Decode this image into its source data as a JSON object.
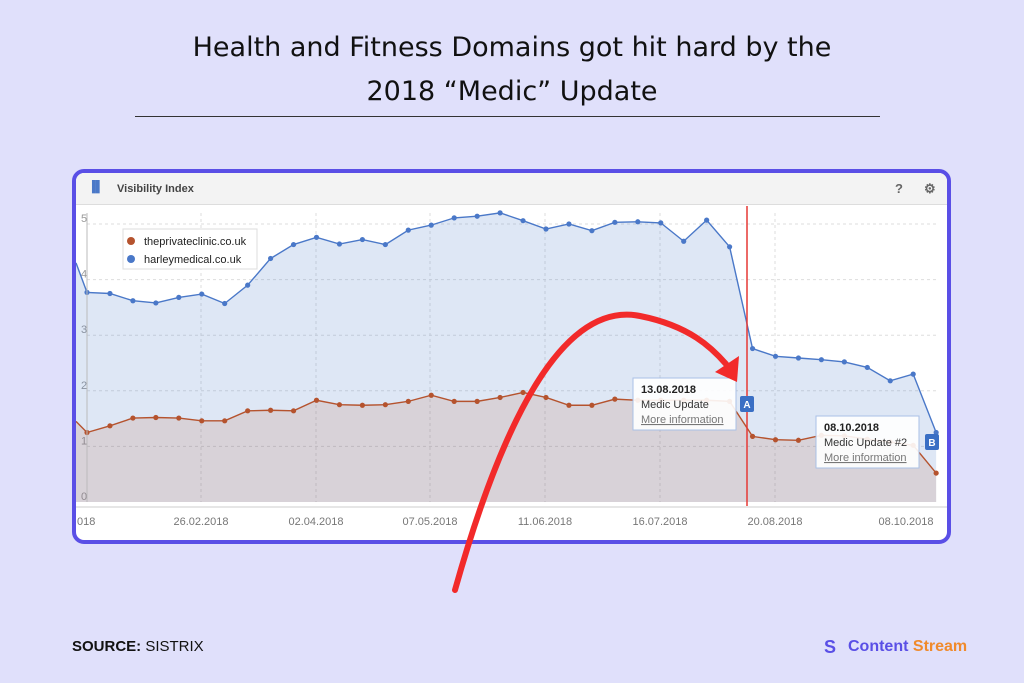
{
  "title_line1": "Health and Fitness Domains got hit hard by the",
  "title_line2": "2018 “Medic” Update",
  "widget": {
    "title": "Visibility Index",
    "help_icon": "question-icon",
    "settings_icon": "gear-icon",
    "chart_icon": "bar-chart-icon"
  },
  "chart_data": {
    "type": "area",
    "title": "Visibility Index",
    "xlabel": "",
    "ylabel": "",
    "ylim": [
      0,
      5.3
    ],
    "yticks": [
      "0",
      "1",
      "2",
      "3",
      "4",
      "5"
    ],
    "xtick_labels": [
      "018",
      "26.02.2018",
      "02.04.2018",
      "07.05.2018",
      "11.06.2018",
      "16.07.2018",
      "20.08.2018",
      "08.10.2018"
    ],
    "grid": true,
    "legend_position": "top-left",
    "x_start": "22.01.2018",
    "x_interval": "weekly",
    "series": [
      {
        "name": "theprivateclinic.co.uk",
        "color": "#b5532e",
        "values": [
          1.25,
          1.37,
          1.51,
          1.52,
          1.51,
          1.46,
          1.46,
          1.64,
          1.65,
          1.64,
          1.83,
          1.75,
          1.74,
          1.75,
          1.81,
          1.92,
          1.81,
          1.81,
          1.88,
          1.97,
          1.88,
          1.74,
          1.74,
          1.85,
          1.83,
          1.83,
          1.83,
          1.83,
          1.81,
          1.18,
          1.12,
          1.11,
          1.2,
          1.19,
          1.13,
          1.08,
          1.02,
          0.52
        ]
      },
      {
        "name": "harleymedical.co.uk",
        "color": "#4a78c8",
        "values": [
          3.77,
          3.75,
          3.62,
          3.58,
          3.68,
          3.74,
          3.57,
          3.9,
          4.38,
          4.63,
          4.76,
          4.64,
          4.72,
          4.63,
          4.89,
          4.98,
          5.11,
          5.14,
          5.2,
          5.06,
          4.91,
          5.0,
          4.88,
          5.03,
          5.04,
          5.02,
          4.69,
          5.07,
          4.59,
          2.76,
          2.62,
          2.59,
          2.56,
          2.52,
          2.42,
          2.18,
          2.3,
          1.25
        ]
      }
    ],
    "annotations": [
      {
        "marker": "A",
        "date": "13.08.2018",
        "label": "Medic Update",
        "link": "More information"
      },
      {
        "marker": "B",
        "date": "08.10.2018",
        "label": "Medic Update #2",
        "link": "More information"
      }
    ]
  },
  "source_label": "SOURCE:",
  "source_value": "SISTRIX",
  "brand": {
    "part1": "Content",
    "part2": "Stream",
    "color1": "#5a4fe6",
    "color2": "#f08a2c"
  }
}
